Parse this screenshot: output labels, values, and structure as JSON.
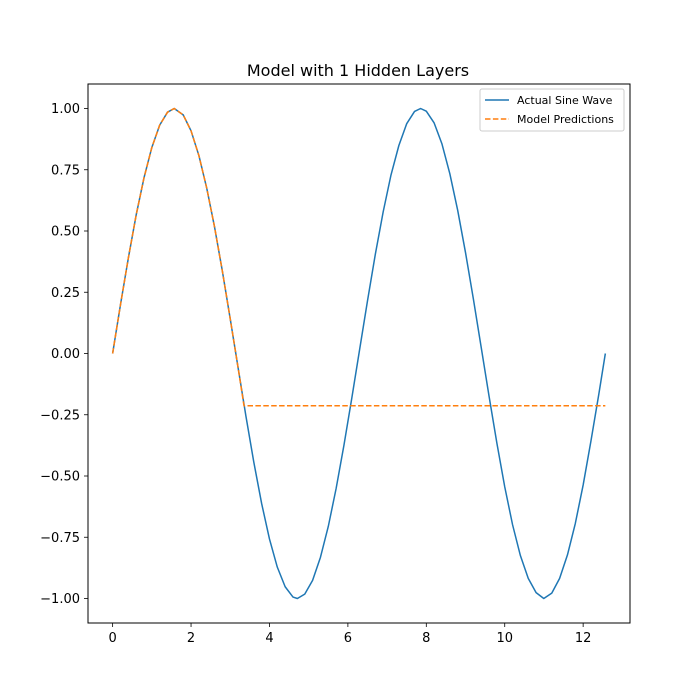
{
  "chart_data": {
    "type": "line",
    "title": "Model with 1 Hidden Layers",
    "xlabel": "",
    "ylabel": "",
    "xlim": [
      -0.628,
      13.195
    ],
    "ylim": [
      -1.1,
      1.1
    ],
    "xticks": [
      0,
      2,
      4,
      6,
      8,
      10,
      12
    ],
    "xtick_labels": [
      "0",
      "2",
      "4",
      "6",
      "8",
      "10",
      "12"
    ],
    "yticks": [
      -1.0,
      -0.75,
      -0.5,
      -0.25,
      0.0,
      0.25,
      0.5,
      0.75,
      1.0
    ],
    "ytick_labels": [
      "−1.00",
      "−0.75",
      "−0.50",
      "−0.25",
      "0.00",
      "0.25",
      "0.50",
      "0.75",
      "1.00"
    ],
    "grid": false,
    "legend_position": "top-right",
    "series": [
      {
        "name": "Actual Sine Wave",
        "color": "#1f77b4",
        "style": "solid",
        "x": [
          0,
          0.2,
          0.4,
          0.6,
          0.8,
          1.0,
          1.2,
          1.4,
          1.571,
          1.8,
          2.0,
          2.2,
          2.4,
          2.6,
          2.8,
          3.0,
          3.2,
          3.4,
          3.6,
          3.8,
          4.0,
          4.2,
          4.4,
          4.6,
          4.712,
          4.9,
          5.1,
          5.3,
          5.5,
          5.7,
          5.9,
          6.1,
          6.3,
          6.5,
          6.7,
          6.9,
          7.1,
          7.3,
          7.5,
          7.7,
          7.854,
          8.0,
          8.2,
          8.4,
          8.6,
          8.8,
          9.0,
          9.2,
          9.4,
          9.6,
          9.8,
          10.0,
          10.2,
          10.4,
          10.6,
          10.8,
          10.996,
          11.2,
          11.4,
          11.6,
          11.8,
          12.0,
          12.2,
          12.4,
          12.566
        ],
        "y": [
          0.0,
          0.199,
          0.389,
          0.565,
          0.717,
          0.841,
          0.932,
          0.985,
          1.0,
          0.974,
          0.909,
          0.808,
          0.675,
          0.516,
          0.335,
          0.141,
          -0.058,
          -0.256,
          -0.443,
          -0.612,
          -0.757,
          -0.872,
          -0.952,
          -0.994,
          -1.0,
          -0.982,
          -0.926,
          -0.832,
          -0.706,
          -0.551,
          -0.374,
          -0.182,
          0.017,
          0.215,
          0.405,
          0.578,
          0.729,
          0.849,
          0.938,
          0.988,
          1.0,
          0.989,
          0.941,
          0.855,
          0.734,
          0.585,
          0.412,
          0.223,
          0.025,
          -0.174,
          -0.366,
          -0.544,
          -0.699,
          -0.825,
          -0.918,
          -0.976,
          -1.0,
          -0.978,
          -0.918,
          -0.822,
          -0.694,
          -0.537,
          -0.356,
          -0.166,
          0.0
        ]
      },
      {
        "name": "Model Predictions",
        "color": "#ff7f0e",
        "style": "dashed",
        "x": [
          0,
          0.2,
          0.4,
          0.6,
          0.8,
          1.0,
          1.2,
          1.4,
          1.571,
          1.8,
          2.0,
          2.2,
          2.4,
          2.6,
          2.8,
          3.0,
          3.2,
          3.35,
          4.0,
          6.0,
          8.0,
          10.0,
          12.0,
          12.566
        ],
        "y": [
          0.0,
          0.199,
          0.389,
          0.565,
          0.717,
          0.841,
          0.932,
          0.985,
          1.0,
          0.974,
          0.909,
          0.808,
          0.675,
          0.516,
          0.335,
          0.141,
          -0.058,
          -0.213,
          -0.213,
          -0.213,
          -0.213,
          -0.213,
          -0.213,
          -0.213
        ]
      }
    ]
  }
}
